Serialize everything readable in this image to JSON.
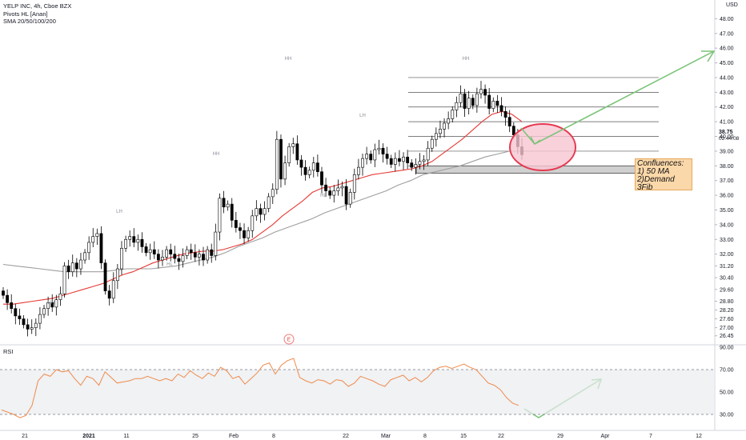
{
  "legend": {
    "symbol": "YELP INC, 4h, Cboe BZX",
    "indicator1": "Pivots HL [Anan]",
    "indicator2": "SMA 20/50/100/200"
  },
  "currency": "USD",
  "last_price": "38.75",
  "countdown": "02:44:08",
  "note": {
    "title": "Confluences:",
    "line1": "1) 50 MA",
    "line2": "2)Demand",
    "line3": "3Fib"
  },
  "earnings_marker": "E",
  "pivot_labels": [
    "HH",
    "LH",
    "HH",
    "HL",
    "HH",
    "LH",
    "HL",
    "HH"
  ],
  "colors": {
    "up": "#ffffff",
    "down": "#000000",
    "sma20": "#e53935",
    "sma50": "#9e9e9e",
    "rsi": "#f08a4b",
    "arrow": "#7cc47a",
    "circle_stroke": "#e53950",
    "circle_fill": "#f7c6d2",
    "demand_fill": "#d0d0d0"
  },
  "chart_data": [
    {
      "type": "candlestick",
      "title": "YELP INC, 4h, Cboe BZX",
      "ylabel": "USD",
      "ylim": [
        26.0,
        49.0
      ],
      "y_ticks": [
        "48.00",
        "47.00",
        "46.00",
        "45.00",
        "44.00",
        "43.00",
        "42.00",
        "41.00",
        "40.00",
        "39.00",
        "38.00",
        "37.00",
        "36.00",
        "35.00",
        "34.00",
        "33.00",
        "32.00",
        "31.20",
        "30.40",
        "29.60",
        "28.80",
        "28.20",
        "27.60",
        "27.00",
        "26.45"
      ],
      "x_ticks": [
        "21",
        "2021",
        "11",
        "25",
        "Feb",
        "8",
        "22",
        "Mar",
        "8",
        "15",
        "22",
        "29",
        "Apr",
        "7",
        "12"
      ],
      "closes": [
        29.2,
        28.7,
        28.3,
        27.8,
        27.6,
        27.2,
        26.9,
        27.0,
        27.3,
        27.9,
        28.3,
        28.7,
        28.4,
        28.9,
        29.3,
        31.2,
        30.8,
        31.4,
        31.0,
        31.6,
        32.1,
        32.8,
        33.2,
        33.4,
        31.4,
        29.5,
        29.0,
        30.2,
        31.0,
        32.4,
        33.0,
        33.2,
        32.8,
        33.0,
        32.5,
        32.1,
        32.3,
        32.0,
        31.6,
        31.8,
        32.3,
        32.0,
        31.7,
        31.5,
        31.9,
        32.3,
        32.1,
        31.8,
        32.0,
        31.6,
        32.3,
        31.9,
        33.5,
        35.8,
        35.2,
        35.4,
        34.3,
        33.8,
        33.6,
        33.1,
        33.6,
        34.6,
        35.1,
        34.7,
        35.1,
        35.9,
        36.4,
        39.8,
        37.1,
        38.2,
        39.3,
        39.5,
        38.4,
        37.9,
        37.4,
        37.7,
        38.2,
        37.6,
        36.7,
        36.3,
        36.0,
        36.3,
        36.5,
        36.6,
        35.4,
        36.2,
        37.4,
        37.9,
        38.5,
        38.8,
        38.4,
        39.1,
        39.2,
        38.8,
        38.5,
        38.1,
        38.5,
        38.3,
        38.6,
        38.2,
        37.9,
        38.1,
        38.3,
        38.4,
        39.2,
        39.8,
        40.2,
        40.5,
        40.9,
        41.2,
        41.8,
        42.3,
        42.9,
        41.9,
        42.6,
        42.1,
        42.9,
        43.2,
        42.8,
        41.9,
        42.4,
        42.1,
        41.7,
        41.3,
        40.7,
        40.1,
        39.3,
        38.75
      ],
      "series": [
        {
          "name": "SMA 20",
          "values": [
            28.6,
            28.6,
            28.7,
            28.8,
            28.9,
            29.0,
            29.2,
            29.4,
            29.6,
            29.8,
            30.0,
            30.3,
            30.6,
            30.8,
            31.1,
            31.4,
            31.6,
            31.8,
            32.0,
            32.1,
            32.2,
            32.2,
            32.3,
            32.5,
            32.7,
            33.0,
            33.5,
            34.0,
            34.6,
            35.1,
            35.6,
            36.2,
            36.5,
            36.6,
            36.8,
            37.0,
            37.2,
            37.4,
            37.5,
            37.6,
            37.7,
            37.8,
            38.0,
            38.3,
            38.8,
            39.3,
            39.8,
            40.4,
            41.0,
            41.5,
            41.7,
            41.5,
            41.0
          ]
        },
        {
          "name": "SMA 50",
          "values": [
            31.3,
            31.2,
            31.1,
            31.0,
            30.9,
            30.8,
            30.8,
            30.8,
            30.8,
            30.9,
            31.0,
            31.0,
            31.0,
            31.1,
            31.2,
            31.4,
            31.6,
            31.8,
            32.1,
            32.5,
            32.8,
            33.1,
            33.5,
            33.8,
            34.1,
            34.4,
            34.8,
            35.1,
            35.4,
            35.7,
            36.0,
            36.3,
            36.7,
            37.0,
            37.4,
            37.6,
            37.8,
            38.0,
            38.3,
            38.6,
            38.8,
            39.0,
            39.0
          ]
        }
      ],
      "fib_levels": [
        44.0,
        43.0,
        42.0,
        41.0,
        40.0,
        39.0,
        38.0
      ],
      "demand_zone": [
        37.5,
        38.0
      ],
      "projection": {
        "from": 38.0,
        "to": 45.0
      }
    },
    {
      "type": "line",
      "title": "RSI",
      "ylim": [
        20,
        90
      ],
      "y_ticks": [
        "90.00",
        "70.00",
        "50.00",
        "30.00"
      ],
      "bands": [
        30,
        70
      ],
      "series": [
        {
          "name": "RSI",
          "values": [
            34,
            32,
            30,
            27,
            29,
            38,
            60,
            66,
            64,
            70,
            68,
            69,
            62,
            56,
            64,
            62,
            56,
            68,
            63,
            58,
            59,
            60,
            62,
            62,
            64,
            62,
            60,
            62,
            60,
            66,
            63,
            69,
            65,
            62,
            67,
            64,
            72,
            69,
            62,
            64,
            57,
            62,
            67,
            74,
            76,
            66,
            74,
            78,
            80,
            63,
            60,
            58,
            61,
            60,
            57,
            61,
            60,
            55,
            58,
            64,
            62,
            60,
            57,
            55,
            61,
            63,
            65,
            60,
            63,
            59,
            63,
            69,
            72,
            73,
            71,
            73,
            75,
            72,
            70,
            64,
            58,
            56,
            52,
            45,
            40,
            38
          ]
        }
      ],
      "projection": {
        "from": 30,
        "to": 64
      }
    }
  ]
}
